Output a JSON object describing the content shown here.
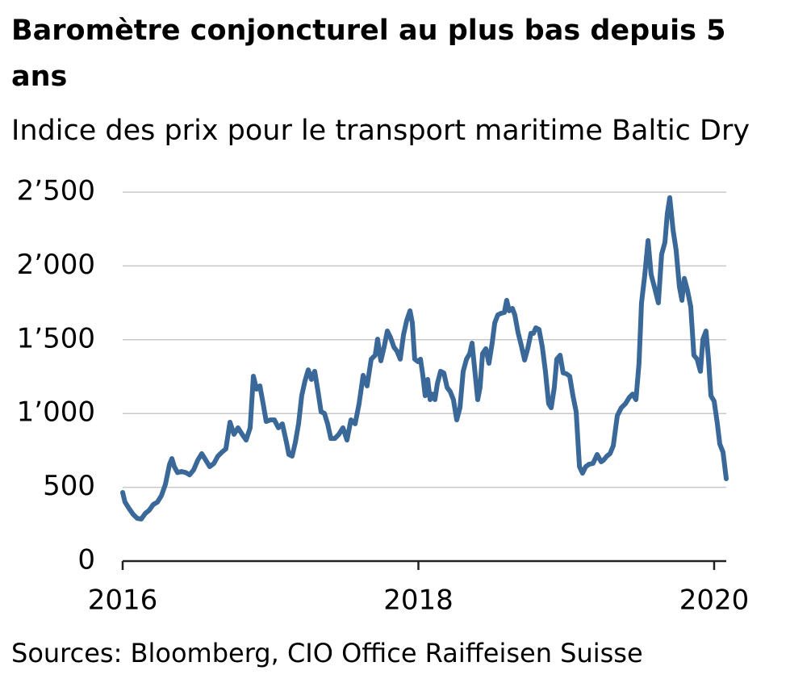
{
  "chart_data": {
    "type": "line",
    "title": "Baromètre conjoncturel au plus bas depuis 5 ans",
    "subtitle": "Indice des prix pour le transport maritime Baltic Dry",
    "source": "Sources: Bloomberg, CIO Office Raiffeisen Suisse",
    "color": "#3a6898",
    "x": [
      2016,
      2016.016,
      2016.044,
      2016.071,
      2016.098,
      2016.126,
      2016.153,
      2016.18,
      2016.207,
      2016.235,
      2016.262,
      2016.289,
      2016.317,
      2016.333,
      2016.349,
      2016.371,
      2016.398,
      2016.426,
      2016.453,
      2016.48,
      2016.508,
      2016.535,
      2016.562,
      2016.589,
      2016.617,
      2016.644,
      2016.671,
      2016.698,
      2016.726,
      2016.753,
      2016.78,
      2016.808,
      2016.835,
      2016.862,
      2016.884,
      2016.906,
      2016.928,
      2016.95,
      2016.971,
      2016.999,
      2017.026,
      2017.053,
      2017.08,
      2017.108,
      2017.124,
      2017.146,
      2017.168,
      2017.19,
      2017.211,
      2017.233,
      2017.255,
      2017.277,
      2017.299,
      2017.321,
      2017.342,
      2017.364,
      2017.386,
      2017.408,
      2017.435,
      2017.462,
      2017.49,
      2017.517,
      2017.544,
      2017.572,
      2017.599,
      2017.626,
      2017.653,
      2017.681,
      2017.708,
      2017.724,
      2017.746,
      2017.768,
      2017.79,
      2017.812,
      2017.834,
      2017.855,
      2017.877,
      2017.899,
      2017.921,
      2017.943,
      2017.959,
      2017.975,
      2017.997,
      2018.014,
      2018.03,
      2018.046,
      2018.063,
      2018.079,
      2018.095,
      2018.112,
      2018.128,
      2018.15,
      2018.172,
      2018.194,
      2018.215,
      2018.237,
      2018.259,
      2018.281,
      2018.303,
      2018.325,
      2018.347,
      2018.363,
      2018.379,
      2018.401,
      2018.417,
      2018.434,
      2018.456,
      2018.477,
      2018.499,
      2018.516,
      2018.537,
      2018.559,
      2018.581,
      2018.597,
      2018.614,
      2018.636,
      2018.652,
      2018.674,
      2018.696,
      2018.718,
      2018.739,
      2018.761,
      2018.778,
      2018.794,
      2018.816,
      2018.838,
      2018.859,
      2018.881,
      2018.898,
      2018.919,
      2018.936,
      2018.958,
      2018.979,
      2019.001,
      2019.023,
      2019.045,
      2019.067,
      2019.089,
      2019.11,
      2019.132,
      2019.154,
      2019.181,
      2019.209,
      2019.236,
      2019.252,
      2019.274,
      2019.296,
      2019.318,
      2019.345,
      2019.372,
      2019.4,
      2019.427,
      2019.449,
      2019.471,
      2019.492,
      2019.509,
      2019.531,
      2019.553,
      2019.574,
      2019.602,
      2019.623,
      2019.645,
      2019.667,
      2019.683,
      2019.7,
      2019.722,
      2019.743,
      2019.765,
      2019.782,
      2019.798,
      2019.82,
      2019.842,
      2019.863,
      2019.885,
      2019.907,
      2019.924,
      2019.945,
      2019.962,
      2019.978,
      2020,
      2020.022,
      2020.038,
      2020.06,
      2020.082
    ],
    "values": [
      465,
      400,
      355,
      317,
      290,
      285,
      323,
      345,
      383,
      400,
      443,
      520,
      656,
      695,
      640,
      600,
      607,
      600,
      585,
      618,
      684,
      728,
      684,
      640,
      662,
      711,
      738,
      760,
      941,
      859,
      903,
      859,
      820,
      903,
      1253,
      1165,
      1187,
      1067,
      946,
      957,
      957,
      903,
      930,
      804,
      722,
      711,
      804,
      935,
      1121,
      1220,
      1296,
      1231,
      1286,
      1149,
      1012,
      1001,
      930,
      831,
      831,
      859,
      903,
      820,
      957,
      930,
      1067,
      1258,
      1187,
      1368,
      1395,
      1504,
      1357,
      1450,
      1559,
      1515,
      1450,
      1423,
      1368,
      1532,
      1630,
      1696,
      1614,
      1368,
      1351,
      1368,
      1258,
      1121,
      1231,
      1094,
      1132,
      1094,
      1203,
      1286,
      1275,
      1176,
      1149,
      1094,
      957,
      1039,
      1286,
      1368,
      1406,
      1477,
      1313,
      1094,
      1176,
      1406,
      1439,
      1340,
      1477,
      1614,
      1668,
      1679,
      1685,
      1767,
      1696,
      1712,
      1668,
      1548,
      1461,
      1362,
      1439,
      1543,
      1543,
      1581,
      1570,
      1450,
      1286,
      1067,
      1039,
      1176,
      1368,
      1395,
      1275,
      1269,
      1253,
      1121,
      1012,
      640,
      596,
      640,
      656,
      662,
      722,
      673,
      684,
      711,
      728,
      782,
      985,
      1039,
      1067,
      1110,
      1132,
      1094,
      1340,
      1750,
      1942,
      2172,
      1942,
      1833,
      1750,
      2078,
      2160,
      2352,
      2462,
      2243,
      2106,
      1860,
      1767,
      1915,
      1833,
      1723,
      1395,
      1368,
      1286,
      1504,
      1559,
      1368,
      1121,
      1083,
      930,
      793,
      738,
      558
    ],
    "xlim": [
      2016,
      2020.1
    ],
    "xticks": [
      2016,
      2018,
      2020
    ],
    "ylim": [
      0,
      2500
    ],
    "yticks": [
      0,
      500,
      {
        "value": 1000,
        "label": "1’000"
      },
      {
        "value": 1500,
        "label": "1’500"
      },
      {
        "value": 2000,
        "label": "2’000"
      },
      {
        "value": 2500,
        "label": "2’500"
      }
    ],
    "grid": true
  }
}
